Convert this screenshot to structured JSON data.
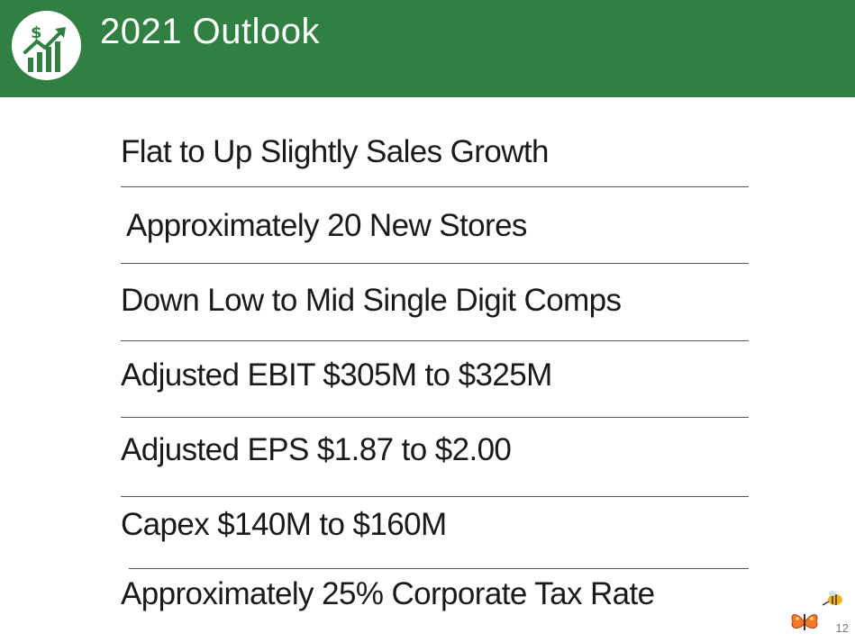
{
  "header": {
    "title": "2021 Outlook",
    "logo_icon": "growth-chart-dollar-icon",
    "background_color": "#317f43"
  },
  "outlook_items": [
    "Flat to Up Slightly Sales Growth",
    "Approximately 20 New Stores",
    "Down Low to Mid Single Digit Comps",
    "Adjusted EBIT $305M to $325M",
    "Adjusted EPS $1.87 to $2.00",
    "Capex $140M to $160M",
    "Approximately 25% Corporate Tax Rate"
  ],
  "footer": {
    "page_number": "12",
    "decorations": [
      "butterfly-icon",
      "bee-icon"
    ]
  }
}
